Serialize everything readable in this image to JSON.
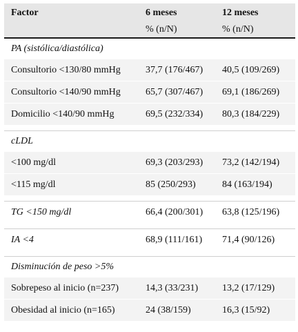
{
  "header": {
    "factor": "Factor",
    "col1": "6 meses",
    "col2": "12 meses",
    "sub1": "% (n/N)",
    "sub2": "% (n/N)"
  },
  "sections": {
    "pa": {
      "title": "PA (sistólica/diastólica)",
      "rows": [
        {
          "label": "Consultorio <130/80 mmHg",
          "v6": "37,7 (176/467)",
          "v12": "40,5 (109/269)"
        },
        {
          "label": "Consultorio <140/90 mmHg",
          "v6": "65,7 (307/467)",
          "v12": "69,1 (186/269)"
        },
        {
          "label": "Domicilio <140/90 mmHg",
          "v6": "69,5 (232/334)",
          "v12": "80,3 (184/229)"
        }
      ]
    },
    "cldl": {
      "title": "cLDL",
      "rows": [
        {
          "label": "<100 mg/dl",
          "v6": "69,3 (203/293)",
          "v12": "73,2 (142/194)"
        },
        {
          "label": "<115 mg/dl",
          "v6": "85 (250/293)",
          "v12": "84 (163/194)"
        }
      ]
    },
    "tg": {
      "label": "TG <150 mg/dl",
      "v6": "66,4 (200/301)",
      "v12": "63,8 (125/196)"
    },
    "ia": {
      "label": "IA <4",
      "v6": "68,9 (111/161)",
      "v12": "71,4 (90/126)"
    },
    "peso": {
      "title": "Disminución de peso >5%",
      "rows": [
        {
          "label": "Sobrepeso al inicio (n=237)",
          "v6": "14,3 (33/231)",
          "v12": "13,2 (17/129)"
        },
        {
          "label": "Obesidad al inicio (n=165)",
          "v6": "24 (38/159)",
          "v12": "16,3 (15/92)"
        }
      ]
    }
  }
}
